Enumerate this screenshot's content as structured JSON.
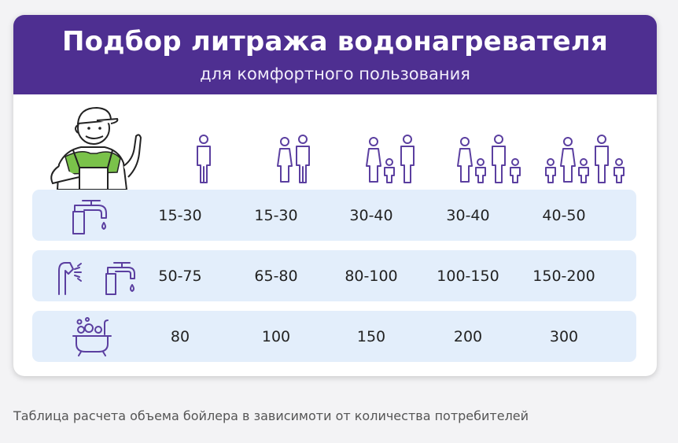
{
  "header": {
    "title": "Подбор литража водонагревателя",
    "subtitle": "для комфортного пользования"
  },
  "colors": {
    "header": "#4e2f91",
    "row": "#e3eefb",
    "icon": "#5b3fa0",
    "worker_green": "#7ac24a"
  },
  "columns": [
    {
      "icon": "one-person-icon"
    },
    {
      "icon": "two-persons-icon"
    },
    {
      "icon": "three-persons-icon"
    },
    {
      "icon": "four-persons-icon"
    },
    {
      "icon": "five-persons-icon"
    }
  ],
  "rows": [
    {
      "icon": "faucet-icon",
      "values": [
        "15-30",
        "15-30",
        "30-40",
        "30-40",
        "40-50"
      ]
    },
    {
      "icon": "shower-and-faucet-icon",
      "values": [
        "50-75",
        "65-80",
        "80-100",
        "100-150",
        "150-200"
      ]
    },
    {
      "icon": "bathtub-icon",
      "values": [
        "80",
        "100",
        "150",
        "200",
        "300"
      ]
    }
  ],
  "caption": "Таблица расчета объема бойлера в зависимоти от количества потребителей"
}
